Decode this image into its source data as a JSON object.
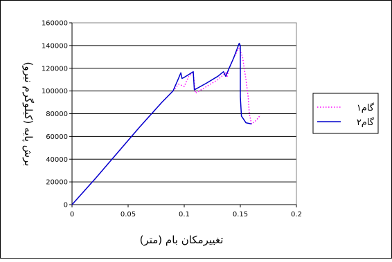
{
  "chart_data": {
    "type": "line",
    "title": "",
    "xlabel": "تغییرمکان بام (متر)",
    "ylabel": "برش پایه (کیلوگرم نیرو)",
    "xlim": [
      0,
      0.2
    ],
    "ylim": [
      0,
      160000
    ],
    "x_ticks": [
      "0",
      "0.05",
      "0.1",
      "0.15",
      "0.2"
    ],
    "y_ticks": [
      "0",
      "20000",
      "40000",
      "60000",
      "80000",
      "100000",
      "120000",
      "140000",
      "160000"
    ],
    "grid": "horizontal",
    "legend_position": "right",
    "series": [
      {
        "name": "گام۱",
        "color": "#ff00ff",
        "style": "dotted",
        "points": [
          [
            0,
            0
          ],
          [
            0.02,
            22000
          ],
          [
            0.04,
            45000
          ],
          [
            0.06,
            68000
          ],
          [
            0.08,
            90000
          ],
          [
            0.09,
            100000
          ],
          [
            0.095,
            106000
          ],
          [
            0.1,
            104000
          ],
          [
            0.104,
            113000
          ],
          [
            0.108,
            116000
          ],
          [
            0.11,
            98000
          ],
          [
            0.12,
            104000
          ],
          [
            0.13,
            110000
          ],
          [
            0.137,
            116000
          ],
          [
            0.138,
            112000
          ],
          [
            0.14,
            120000
          ],
          [
            0.145,
            131000
          ],
          [
            0.149,
            138000
          ],
          [
            0.152,
            130000
          ],
          [
            0.155,
            110000
          ],
          [
            0.157,
            95000
          ],
          [
            0.158,
            80000
          ],
          [
            0.16,
            71000
          ],
          [
            0.164,
            74000
          ],
          [
            0.168,
            79000
          ]
        ]
      },
      {
        "name": "گام۲",
        "color": "#0000cc",
        "style": "solid",
        "points": [
          [
            0,
            0
          ],
          [
            0.02,
            22000
          ],
          [
            0.04,
            45000
          ],
          [
            0.06,
            68000
          ],
          [
            0.08,
            90000
          ],
          [
            0.09,
            100000
          ],
          [
            0.094,
            109000
          ],
          [
            0.097,
            116000
          ],
          [
            0.098,
            111000
          ],
          [
            0.1,
            112000
          ],
          [
            0.108,
            117000
          ],
          [
            0.109,
            101000
          ],
          [
            0.12,
            107000
          ],
          [
            0.13,
            113000
          ],
          [
            0.135,
            117000
          ],
          [
            0.137,
            113000
          ],
          [
            0.14,
            120000
          ],
          [
            0.144,
            129000
          ],
          [
            0.149,
            142000
          ],
          [
            0.15,
            140000
          ],
          [
            0.15,
            118000
          ],
          [
            0.15,
            95000
          ],
          [
            0.151,
            78000
          ],
          [
            0.155,
            72000
          ],
          [
            0.16,
            71000
          ]
        ]
      }
    ]
  }
}
